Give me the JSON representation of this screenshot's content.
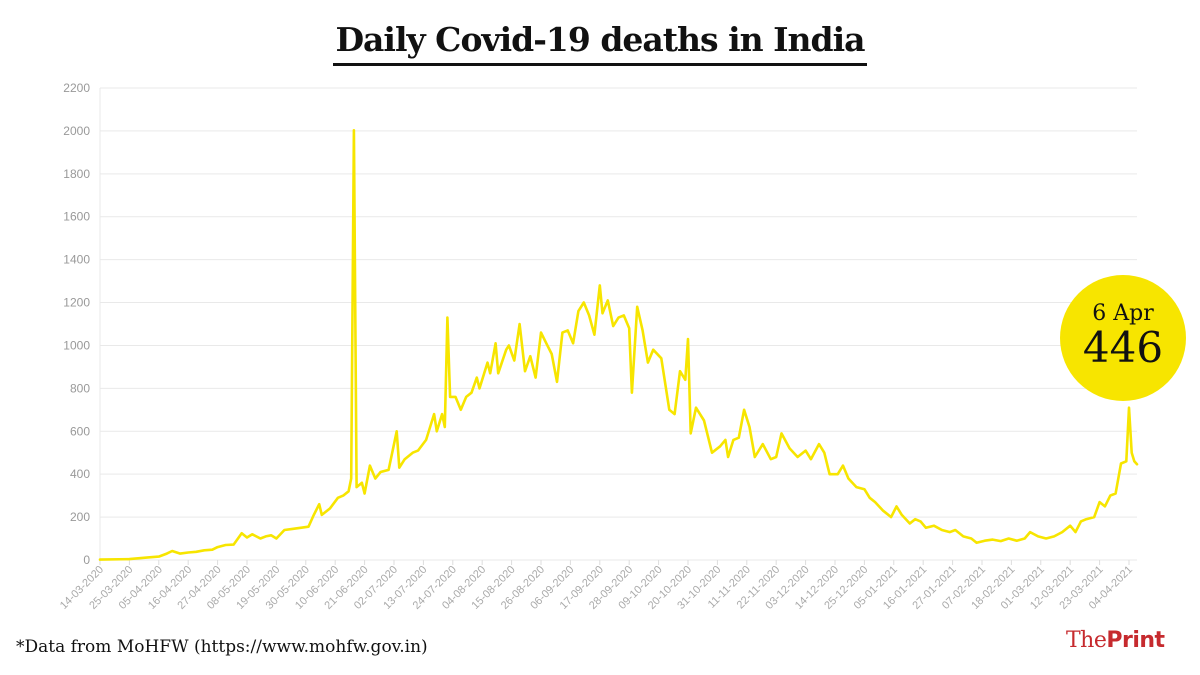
{
  "title": "Daily Covid-19 deaths in India",
  "source_note": "*Data from MoHFW (https://www.mohfw.gov.in)",
  "brand": {
    "part1": "The",
    "part2": "Print",
    "color": "#c62a2e"
  },
  "callout": {
    "date": "6 Apr",
    "value": "446",
    "color": "#f7e500"
  },
  "chart_data": {
    "type": "line",
    "title": "Daily Covid-19 deaths in India",
    "xlabel": "",
    "ylabel": "",
    "ylim": [
      0,
      2200
    ],
    "y_ticks": [
      0,
      200,
      400,
      600,
      800,
      1000,
      1200,
      1400,
      1600,
      1800,
      2000,
      2200
    ],
    "x_ticks": [
      "14-03-2020",
      "25-03-2020",
      "05-04-2020",
      "16-04-2020",
      "27-04-2020",
      "08-05-2020",
      "19-05-2020",
      "30-05-2020",
      "10-06-2020",
      "21-06-2020",
      "02-07-2020",
      "13-07-2020",
      "24-07-2020",
      "04-08-2020",
      "15-08-2020",
      "26-08-2020",
      "06-09-2020",
      "17-09-2020",
      "28-09-2020",
      "09-10-2020",
      "20-10-2020",
      "31-10-2020",
      "11-11-2020",
      "22-11-2020",
      "03-12-2020",
      "14-12-2020",
      "25-12-2020",
      "05-01-2021",
      "16-01-2021",
      "27-01-2021",
      "07-02-2021",
      "18-02-2021",
      "01-03-2021",
      "12-03-2021",
      "23-03-2021",
      "04-04-2021"
    ],
    "grid": true,
    "line_color": "#f7e500",
    "x_start": "2020-03-14",
    "series": [
      {
        "x_end": "2021-04-06",
        "points": [
          [
            "2020-03-14",
            2
          ],
          [
            "2020-03-25",
            4
          ],
          [
            "2020-04-01",
            12
          ],
          [
            "2020-04-05",
            16
          ],
          [
            "2020-04-08",
            30
          ],
          [
            "2020-04-10",
            42
          ],
          [
            "2020-04-13",
            30
          ],
          [
            "2020-04-16",
            35
          ],
          [
            "2020-04-19",
            38
          ],
          [
            "2020-04-22",
            45
          ],
          [
            "2020-04-25",
            48
          ],
          [
            "2020-04-27",
            60
          ],
          [
            "2020-04-30",
            70
          ],
          [
            "2020-05-03",
            72
          ],
          [
            "2020-05-06",
            125
          ],
          [
            "2020-05-08",
            105
          ],
          [
            "2020-05-10",
            120
          ],
          [
            "2020-05-13",
            100
          ],
          [
            "2020-05-15",
            110
          ],
          [
            "2020-05-17",
            115
          ],
          [
            "2020-05-19",
            100
          ],
          [
            "2020-05-22",
            140
          ],
          [
            "2020-05-25",
            145
          ],
          [
            "2020-05-28",
            150
          ],
          [
            "2020-05-31",
            155
          ],
          [
            "2020-06-02",
            210
          ],
          [
            "2020-06-04",
            260
          ],
          [
            "2020-06-05",
            210
          ],
          [
            "2020-06-08",
            240
          ],
          [
            "2020-06-11",
            290
          ],
          [
            "2020-06-13",
            300
          ],
          [
            "2020-06-15",
            320
          ],
          [
            "2020-06-16",
            380
          ],
          [
            "2020-06-17",
            2003
          ],
          [
            "2020-06-18",
            340
          ],
          [
            "2020-06-20",
            360
          ],
          [
            "2020-06-21",
            310
          ],
          [
            "2020-06-23",
            440
          ],
          [
            "2020-06-25",
            380
          ],
          [
            "2020-06-27",
            410
          ],
          [
            "2020-06-30",
            420
          ],
          [
            "2020-07-03",
            600
          ],
          [
            "2020-07-04",
            430
          ],
          [
            "2020-07-06",
            470
          ],
          [
            "2020-07-09",
            500
          ],
          [
            "2020-07-11",
            510
          ],
          [
            "2020-07-14",
            560
          ],
          [
            "2020-07-17",
            680
          ],
          [
            "2020-07-18",
            600
          ],
          [
            "2020-07-20",
            680
          ],
          [
            "2020-07-21",
            620
          ],
          [
            "2020-07-22",
            1130
          ],
          [
            "2020-07-23",
            760
          ],
          [
            "2020-07-25",
            760
          ],
          [
            "2020-07-27",
            700
          ],
          [
            "2020-07-29",
            760
          ],
          [
            "2020-07-31",
            780
          ],
          [
            "2020-08-02",
            850
          ],
          [
            "2020-08-03",
            800
          ],
          [
            "2020-08-06",
            920
          ],
          [
            "2020-08-07",
            870
          ],
          [
            "2020-08-09",
            1010
          ],
          [
            "2020-08-10",
            870
          ],
          [
            "2020-08-13",
            980
          ],
          [
            "2020-08-14",
            1000
          ],
          [
            "2020-08-16",
            930
          ],
          [
            "2020-08-18",
            1100
          ],
          [
            "2020-08-20",
            880
          ],
          [
            "2020-08-22",
            950
          ],
          [
            "2020-08-24",
            850
          ],
          [
            "2020-08-26",
            1060
          ],
          [
            "2020-08-28",
            1010
          ],
          [
            "2020-08-30",
            960
          ],
          [
            "2020-09-01",
            830
          ],
          [
            "2020-09-03",
            1060
          ],
          [
            "2020-09-05",
            1070
          ],
          [
            "2020-09-07",
            1010
          ],
          [
            "2020-09-09",
            1160
          ],
          [
            "2020-09-11",
            1200
          ],
          [
            "2020-09-13",
            1140
          ],
          [
            "2020-09-15",
            1050
          ],
          [
            "2020-09-17",
            1280
          ],
          [
            "2020-09-18",
            1150
          ],
          [
            "2020-09-20",
            1210
          ],
          [
            "2020-09-22",
            1090
          ],
          [
            "2020-09-24",
            1130
          ],
          [
            "2020-09-26",
            1140
          ],
          [
            "2020-09-28",
            1080
          ],
          [
            "2020-09-29",
            780
          ],
          [
            "2020-10-01",
            1180
          ],
          [
            "2020-10-03",
            1070
          ],
          [
            "2020-10-05",
            920
          ],
          [
            "2020-10-07",
            980
          ],
          [
            "2020-10-10",
            940
          ],
          [
            "2020-10-13",
            700
          ],
          [
            "2020-10-15",
            680
          ],
          [
            "2020-10-17",
            880
          ],
          [
            "2020-10-19",
            840
          ],
          [
            "2020-10-20",
            1030
          ],
          [
            "2020-10-21",
            590
          ],
          [
            "2020-10-23",
            710
          ],
          [
            "2020-10-26",
            650
          ],
          [
            "2020-10-29",
            500
          ],
          [
            "2020-11-01",
            530
          ],
          [
            "2020-11-03",
            560
          ],
          [
            "2020-11-04",
            480
          ],
          [
            "2020-11-06",
            560
          ],
          [
            "2020-11-08",
            570
          ],
          [
            "2020-11-10",
            700
          ],
          [
            "2020-11-12",
            620
          ],
          [
            "2020-11-14",
            480
          ],
          [
            "2020-11-17",
            540
          ],
          [
            "2020-11-20",
            470
          ],
          [
            "2020-11-22",
            480
          ],
          [
            "2020-11-24",
            590
          ],
          [
            "2020-11-27",
            520
          ],
          [
            "2020-11-30",
            480
          ],
          [
            "2020-12-03",
            510
          ],
          [
            "2020-12-05",
            470
          ],
          [
            "2020-12-08",
            540
          ],
          [
            "2020-12-10",
            500
          ],
          [
            "2020-12-12",
            400
          ],
          [
            "2020-12-15",
            400
          ],
          [
            "2020-12-17",
            440
          ],
          [
            "2020-12-19",
            380
          ],
          [
            "2020-12-22",
            340
          ],
          [
            "2020-12-25",
            330
          ],
          [
            "2020-12-27",
            290
          ],
          [
            "2020-12-29",
            270
          ],
          [
            "2021-01-01",
            230
          ],
          [
            "2021-01-04",
            200
          ],
          [
            "2021-01-06",
            250
          ],
          [
            "2021-01-08",
            210
          ],
          [
            "2021-01-11",
            170
          ],
          [
            "2021-01-13",
            190
          ],
          [
            "2021-01-15",
            180
          ],
          [
            "2021-01-17",
            150
          ],
          [
            "2021-01-20",
            160
          ],
          [
            "2021-01-23",
            140
          ],
          [
            "2021-01-26",
            130
          ],
          [
            "2021-01-28",
            140
          ],
          [
            "2021-01-31",
            110
          ],
          [
            "2021-02-03",
            100
          ],
          [
            "2021-02-05",
            80
          ],
          [
            "2021-02-08",
            90
          ],
          [
            "2021-02-11",
            95
          ],
          [
            "2021-02-14",
            88
          ],
          [
            "2021-02-17",
            100
          ],
          [
            "2021-02-20",
            90
          ],
          [
            "2021-02-23",
            100
          ],
          [
            "2021-02-25",
            130
          ],
          [
            "2021-02-28",
            110
          ],
          [
            "2021-03-03",
            100
          ],
          [
            "2021-03-06",
            110
          ],
          [
            "2021-03-09",
            130
          ],
          [
            "2021-03-12",
            160
          ],
          [
            "2021-03-14",
            130
          ],
          [
            "2021-03-16",
            180
          ],
          [
            "2021-03-18",
            190
          ],
          [
            "2021-03-21",
            200
          ],
          [
            "2021-03-23",
            270
          ],
          [
            "2021-03-25",
            250
          ],
          [
            "2021-03-27",
            300
          ],
          [
            "2021-03-29",
            310
          ],
          [
            "2021-03-31",
            450
          ],
          [
            "2021-04-02",
            460
          ],
          [
            "2021-04-03",
            710
          ],
          [
            "2021-04-04",
            500
          ],
          [
            "2021-04-05",
            460
          ],
          [
            "2021-04-06",
            446
          ]
        ]
      }
    ]
  }
}
